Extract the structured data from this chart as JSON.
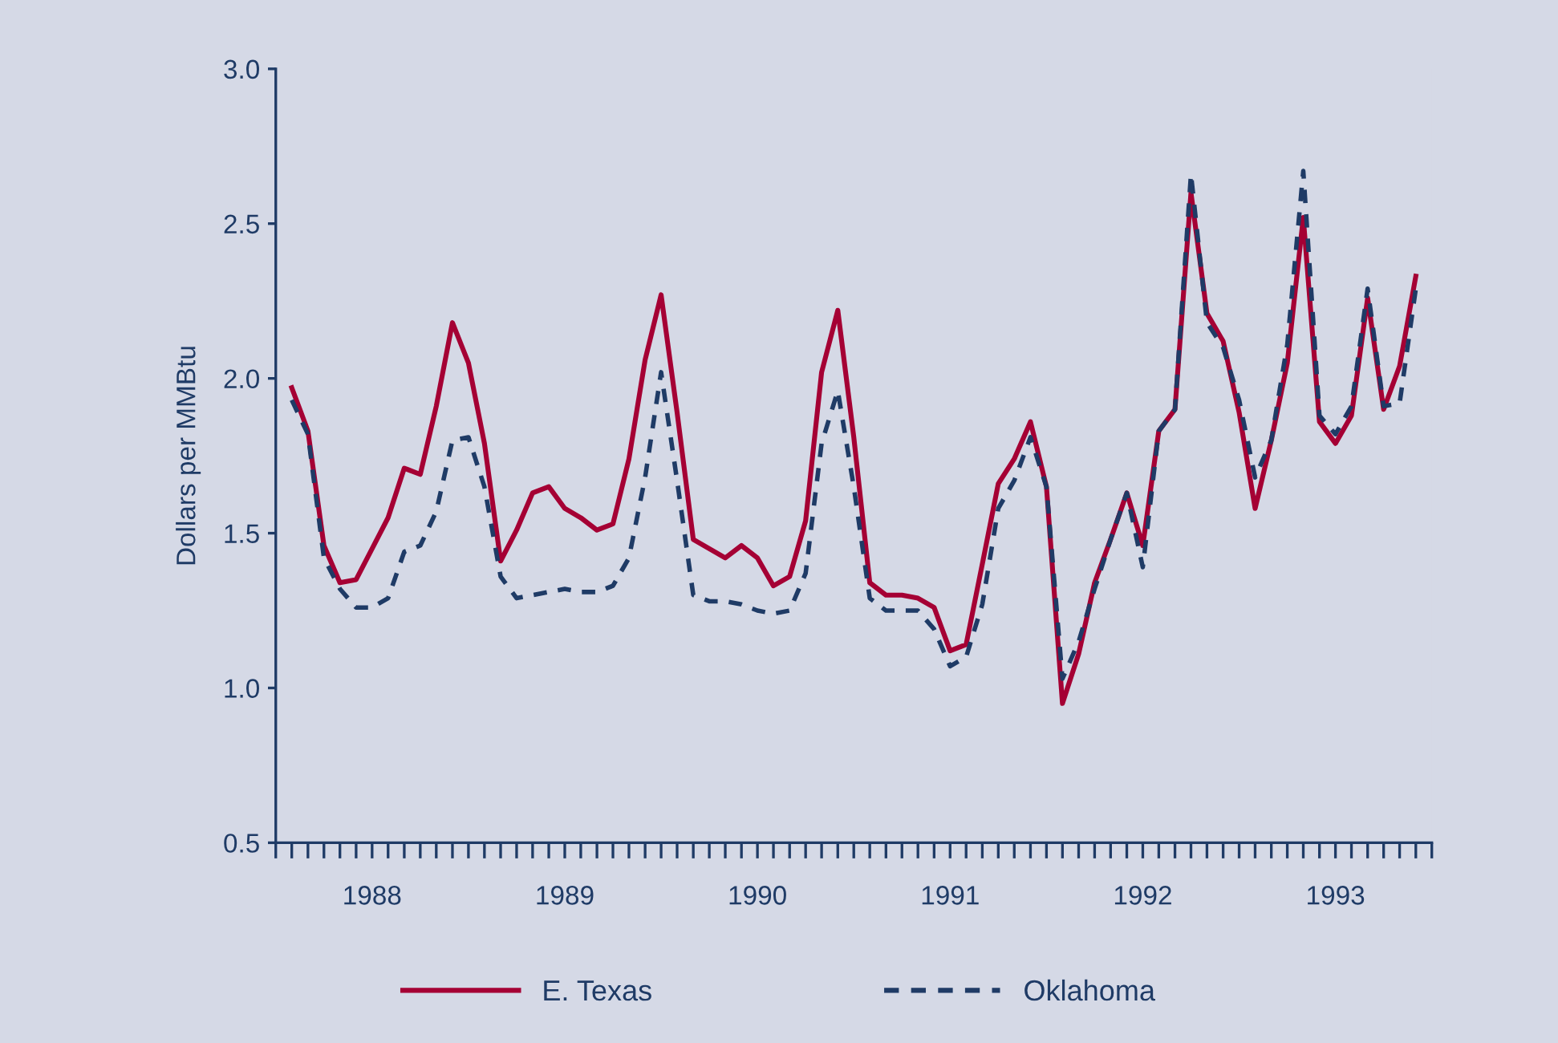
{
  "chart_data": {
    "type": "line",
    "ylabel": "Dollars per MMBtu",
    "xlim": [
      1988,
      1994
    ],
    "ylim": [
      0.5,
      3.0
    ],
    "yticks": [
      0.5,
      {
        "value": 1,
        "label": "1.0"
      },
      1.5,
      {
        "value": 2,
        "label": "2.0"
      },
      2.5,
      {
        "value": 3,
        "label": "3.0"
      }
    ],
    "xticks": [
      {
        "value": 1988,
        "label": null
      },
      {
        "value": 1988.083,
        "label": null
      },
      {
        "value": 1988.167,
        "label": null
      },
      {
        "value": 1988.25,
        "label": null
      },
      {
        "value": 1988.333,
        "label": null
      },
      {
        "value": 1988.417,
        "label": null
      },
      {
        "value": 1988.5,
        "label": "1988"
      },
      {
        "value": 1988.583,
        "label": null
      },
      {
        "value": 1988.667,
        "label": null
      },
      {
        "value": 1988.75,
        "label": null
      },
      {
        "value": 1988.833,
        "label": null
      },
      {
        "value": 1988.917,
        "label": null
      },
      {
        "value": 1989,
        "label": null
      },
      {
        "value": 1989.083,
        "label": null
      },
      {
        "value": 1989.167,
        "label": null
      },
      {
        "value": 1989.25,
        "label": null
      },
      {
        "value": 1989.333,
        "label": null
      },
      {
        "value": 1989.417,
        "label": null
      },
      {
        "value": 1989.5,
        "label": "1989"
      },
      {
        "value": 1989.583,
        "label": null
      },
      {
        "value": 1989.667,
        "label": null
      },
      {
        "value": 1989.75,
        "label": null
      },
      {
        "value": 1989.833,
        "label": null
      },
      {
        "value": 1989.917,
        "label": null
      },
      {
        "value": 1990,
        "label": null
      },
      {
        "value": 1990.083,
        "label": null
      },
      {
        "value": 1990.167,
        "label": null
      },
      {
        "value": 1990.25,
        "label": null
      },
      {
        "value": 1990.333,
        "label": null
      },
      {
        "value": 1990.417,
        "label": null
      },
      {
        "value": 1990.5,
        "label": "1990"
      },
      {
        "value": 1990.583,
        "label": null
      },
      {
        "value": 1990.667,
        "label": null
      },
      {
        "value": 1990.75,
        "label": null
      },
      {
        "value": 1990.833,
        "label": null
      },
      {
        "value": 1990.917,
        "label": null
      },
      {
        "value": 1991,
        "label": null
      },
      {
        "value": 1991.083,
        "label": null
      },
      {
        "value": 1991.167,
        "label": null
      },
      {
        "value": 1991.25,
        "label": null
      },
      {
        "value": 1991.333,
        "label": null
      },
      {
        "value": 1991.417,
        "label": null
      },
      {
        "value": 1991.5,
        "label": "1991"
      },
      {
        "value": 1991.583,
        "label": null
      },
      {
        "value": 1991.667,
        "label": null
      },
      {
        "value": 1991.75,
        "label": null
      },
      {
        "value": 1991.833,
        "label": null
      },
      {
        "value": 1991.917,
        "label": null
      },
      {
        "value": 1992,
        "label": null
      },
      {
        "value": 1992.083,
        "label": null
      },
      {
        "value": 1992.167,
        "label": null
      },
      {
        "value": 1992.25,
        "label": null
      },
      {
        "value": 1992.333,
        "label": null
      },
      {
        "value": 1992.417,
        "label": null
      },
      {
        "value": 1992.5,
        "label": "1992"
      },
      {
        "value": 1992.583,
        "label": null
      },
      {
        "value": 1992.667,
        "label": null
      },
      {
        "value": 1992.75,
        "label": null
      },
      {
        "value": 1992.833,
        "label": null
      },
      {
        "value": 1992.917,
        "label": null
      },
      {
        "value": 1993,
        "label": null
      },
      {
        "value": 1993.083,
        "label": null
      },
      {
        "value": 1993.167,
        "label": null
      },
      {
        "value": 1993.25,
        "label": null
      },
      {
        "value": 1993.333,
        "label": null
      },
      {
        "value": 1993.417,
        "label": null
      },
      {
        "value": 1993.5,
        "label": "1993"
      },
      {
        "value": 1993.583,
        "label": null
      },
      {
        "value": 1993.667,
        "label": null
      },
      {
        "value": 1993.75,
        "label": null
      },
      {
        "value": 1993.833,
        "label": null
      },
      {
        "value": 1993.917,
        "label": null
      },
      {
        "value": 1994,
        "label": null
      }
    ],
    "x": [
      1988.083,
      1988.167,
      1988.25,
      1988.333,
      1988.417,
      1988.5,
      1988.583,
      1988.667,
      1988.75,
      1988.833,
      1988.917,
      1989,
      1989.083,
      1989.167,
      1989.25,
      1989.333,
      1989.417,
      1989.5,
      1989.583,
      1989.667,
      1989.75,
      1989.833,
      1989.917,
      1990,
      1990.083,
      1990.167,
      1990.25,
      1990.333,
      1990.417,
      1990.5,
      1990.583,
      1990.667,
      1990.75,
      1990.833,
      1990.917,
      1991,
      1991.083,
      1991.167,
      1991.25,
      1991.333,
      1991.417,
      1991.5,
      1991.583,
      1991.667,
      1991.75,
      1991.833,
      1991.917,
      1992,
      1992.083,
      1992.167,
      1992.25,
      1992.333,
      1992.417,
      1992.5,
      1992.583,
      1992.667,
      1992.75,
      1992.833,
      1992.917,
      1993,
      1993.083,
      1993.167,
      1993.25,
      1993.333,
      1993.417,
      1993.5,
      1993.583,
      1993.667,
      1993.75,
      1993.833,
      1993.917
    ],
    "grid": false,
    "legend": "bottom",
    "marker": "none",
    "series": [
      {
        "name": "E. Texas",
        "color": "#a50034",
        "line_style": "solid",
        "values": [
          1.97,
          1.83,
          1.46,
          1.34,
          1.35,
          1.45,
          1.55,
          1.71,
          1.69,
          1.91,
          2.18,
          2.05,
          1.79,
          1.41,
          1.51,
          1.63,
          1.65,
          1.58,
          1.55,
          1.51,
          1.53,
          1.74,
          2.06,
          2.27,
          1.89,
          1.48,
          1.45,
          1.42,
          1.46,
          1.42,
          1.33,
          1.36,
          1.54,
          2.02,
          2.22,
          1.81,
          1.34,
          1.3,
          1.3,
          1.29,
          1.26,
          1.12,
          1.14,
          1.4,
          1.66,
          1.74,
          1.86,
          1.65,
          0.95,
          1.11,
          1.34,
          1.48,
          1.63,
          1.46,
          1.83,
          1.9,
          2.6,
          2.21,
          2.12,
          1.89,
          1.58,
          1.8,
          2.05,
          2.52,
          1.86,
          1.79,
          1.88,
          2.26,
          1.9,
          2.04,
          2.33
        ]
      },
      {
        "name": "Oklahoma",
        "color": "#1f3b66",
        "line_style": "dashed",
        "values": [
          1.93,
          1.82,
          1.42,
          1.32,
          1.26,
          1.26,
          1.29,
          1.44,
          1.46,
          1.57,
          1.8,
          1.81,
          1.65,
          1.36,
          1.29,
          1.3,
          1.31,
          1.32,
          1.31,
          1.31,
          1.33,
          1.42,
          1.68,
          2.02,
          1.67,
          1.3,
          1.28,
          1.28,
          1.27,
          1.25,
          1.24,
          1.25,
          1.37,
          1.79,
          1.96,
          1.65,
          1.29,
          1.25,
          1.25,
          1.25,
          1.19,
          1.07,
          1.1,
          1.27,
          1.58,
          1.67,
          1.81,
          1.65,
          1.03,
          1.15,
          1.32,
          1.48,
          1.63,
          1.39,
          1.83,
          1.9,
          2.66,
          2.18,
          2.1,
          1.93,
          1.68,
          1.8,
          2.11,
          2.67,
          1.88,
          1.82,
          1.91,
          2.29,
          1.91,
          1.92,
          2.29
        ]
      }
    ]
  }
}
